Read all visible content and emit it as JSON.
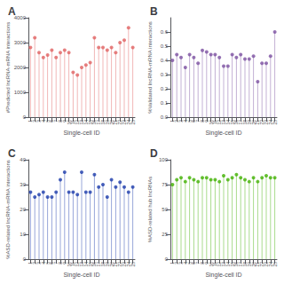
{
  "chart_data": [
    {
      "type": "lollipop",
      "title": "A",
      "x_label": "Single-cell ID",
      "y_label": "#Predicted lncRNA-mRNA interactions",
      "categories": [
        "1",
        "2",
        "3",
        "4",
        "5",
        "6",
        "7",
        "8",
        "9",
        "10",
        "11",
        "12",
        "13",
        "14",
        "15",
        "16",
        "17",
        "18",
        "19",
        "20",
        "21",
        "22",
        "23",
        "24",
        "25"
      ],
      "values": [
        2800,
        3200,
        2600,
        2400,
        2500,
        2700,
        2400,
        2600,
        2700,
        2600,
        1800,
        1700,
        2000,
        2100,
        2200,
        3200,
        2800,
        2800,
        2700,
        2800,
        2600,
        3000,
        3100,
        3600,
        2800
      ],
      "color": "#e06060",
      "ylim": [
        0,
        4000
      ],
      "yticks": [
        0,
        1000,
        2000,
        3000,
        4000
      ],
      "grid": false
    },
    {
      "type": "lollipop",
      "title": "B",
      "x_label": "Single-cell ID",
      "y_label": "%Validated lncRNA-mRNA interactions",
      "categories": [
        "1",
        "2",
        "3",
        "4",
        "5",
        "6",
        "7",
        "8",
        "9",
        "10",
        "11",
        "12",
        "13",
        "14",
        "15",
        "16",
        "17",
        "18",
        "19",
        "20",
        "21",
        "22",
        "23",
        "24",
        "25"
      ],
      "values": [
        0.4,
        0.44,
        0.42,
        0.35,
        0.44,
        0.42,
        0.38,
        0.47,
        0.46,
        0.44,
        0.44,
        0.42,
        0.36,
        0.36,
        0.44,
        0.42,
        0.44,
        0.41,
        0.41,
        0.43,
        0.25,
        0.38,
        0.38,
        0.43,
        0.6
      ],
      "color": "#7b4fa0",
      "ylim": [
        0,
        0.7
      ],
      "yticks": [
        {
          "value": 0,
          "label": "0.0"
        },
        0.1,
        0.2,
        0.3,
        0.4,
        0.5,
        0.6
      ],
      "grid": false
    },
    {
      "type": "lollipop",
      "title": "C",
      "x_label": "Single-cell ID",
      "y_label": "%ASD-related lncRNA-mRNA interactions",
      "categories": [
        "1",
        "2",
        "3",
        "4",
        "5",
        "6",
        "7",
        "8",
        "9",
        "10",
        "11",
        "12",
        "13",
        "14",
        "15",
        "16",
        "17",
        "18",
        "19",
        "20",
        "21",
        "22",
        "23",
        "24",
        "25"
      ],
      "values": [
        27,
        25,
        26,
        27,
        25,
        25,
        27,
        32,
        35,
        27,
        27,
        26,
        35,
        27,
        27,
        34,
        29,
        30,
        25,
        32,
        29,
        31,
        29,
        27,
        29
      ],
      "color": "#1a3aaa",
      "ylim": [
        0,
        40
      ],
      "yticks": [
        0,
        10,
        20,
        30,
        40
      ],
      "grid": false
    },
    {
      "type": "lollipop",
      "title": "D",
      "x_label": "Single-cell ID",
      "y_label": "%ASD-related hub lncRNAs",
      "categories": [
        "1",
        "2",
        "3",
        "4",
        "5",
        "6",
        "7",
        "8",
        "9",
        "10",
        "11",
        "12",
        "13",
        "14",
        "15",
        "16",
        "17",
        "18",
        "19",
        "20",
        "21",
        "22",
        "23",
        "24",
        "25"
      ],
      "values": [
        75,
        80,
        82,
        78,
        82,
        80,
        78,
        82,
        82,
        80,
        80,
        78,
        84,
        80,
        82,
        85,
        82,
        80,
        78,
        82,
        78,
        82,
        84,
        82,
        82
      ],
      "color": "#40b000",
      "ylim": [
        0,
        100
      ],
      "yticks": [
        0,
        25,
        50,
        75,
        100
      ],
      "grid": false
    }
  ]
}
